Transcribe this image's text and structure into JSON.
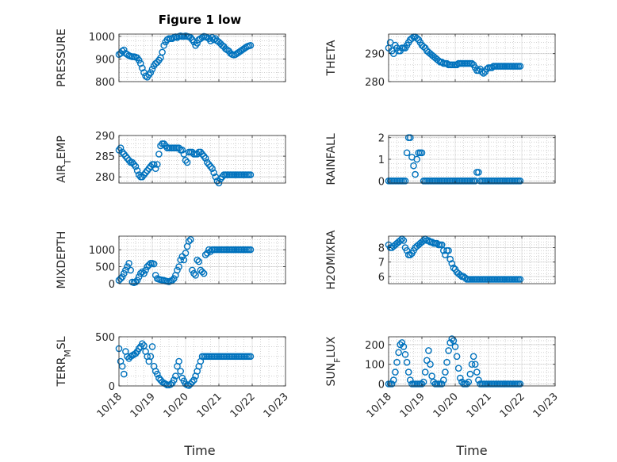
{
  "title": "Figure 1 low",
  "x_label": "Time",
  "x_ticks": [
    "10/18",
    "10/19",
    "10/20",
    "10/21",
    "10/22",
    "10/23"
  ],
  "marker_color": "#0072bd",
  "chart_data": [
    {
      "type": "scatter",
      "ylabel": "PRESSURE",
      "ylim": [
        800,
        1010
      ],
      "yticks": [
        800,
        900,
        1000
      ],
      "grid": true,
      "x": [
        0.0,
        0.05,
        0.1,
        0.15,
        0.2,
        0.25,
        0.3,
        0.35,
        0.4,
        0.45,
        0.5,
        0.55,
        0.6,
        0.65,
        0.7,
        0.75,
        0.8,
        0.85,
        0.9,
        0.95,
        1.0,
        1.05,
        1.1,
        1.15,
        1.2,
        1.25,
        1.3,
        1.35,
        1.4,
        1.45,
        1.5,
        1.55,
        1.6,
        1.65,
        1.7,
        1.75,
        1.8,
        1.85,
        1.9,
        1.95,
        2.0,
        2.05,
        2.1,
        2.15,
        2.2,
        2.25,
        2.3,
        2.35,
        2.4,
        2.45,
        2.5,
        2.55,
        2.6,
        2.65,
        2.7,
        2.75,
        2.8,
        2.85,
        2.9,
        2.95,
        3.0,
        3.05,
        3.1,
        3.15,
        3.2,
        3.25,
        3.3,
        3.35,
        3.4,
        3.45,
        3.5,
        3.55,
        3.6,
        3.65,
        3.7,
        3.75,
        3.8,
        3.85,
        3.9,
        3.95
      ],
      "values": [
        920,
        925,
        935,
        940,
        925,
        920,
        915,
        912,
        910,
        910,
        908,
        905,
        895,
        880,
        860,
        840,
        825,
        820,
        830,
        840,
        855,
        870,
        880,
        885,
        895,
        905,
        930,
        960,
        975,
        985,
        990,
        990,
        990,
        995,
        998,
        995,
        1000,
        1002,
        1000,
        1000,
        1002,
        1000,
        998,
        995,
        985,
        975,
        960,
        970,
        985,
        990,
        995,
        1000,
        998,
        995,
        990,
        980,
        995,
        985,
        990,
        980,
        975,
        968,
        960,
        955,
        945,
        940,
        935,
        925,
        920,
        918,
        920,
        925,
        930,
        935,
        940,
        945,
        950,
        955,
        958,
        960
      ]
    },
    {
      "type": "scatter",
      "ylabel": "THETA",
      "ylim": [
        280,
        297
      ],
      "yticks": [
        280,
        290
      ],
      "grid": true,
      "x": [
        0.0,
        0.05,
        0.1,
        0.15,
        0.2,
        0.25,
        0.3,
        0.35,
        0.4,
        0.45,
        0.5,
        0.55,
        0.6,
        0.65,
        0.7,
        0.75,
        0.8,
        0.85,
        0.9,
        0.95,
        1.0,
        1.05,
        1.1,
        1.15,
        1.2,
        1.25,
        1.3,
        1.35,
        1.4,
        1.45,
        1.5,
        1.55,
        1.6,
        1.65,
        1.7,
        1.75,
        1.8,
        1.85,
        1.9,
        1.95,
        2.0,
        2.05,
        2.1,
        2.15,
        2.2,
        2.25,
        2.3,
        2.35,
        2.4,
        2.45,
        2.5,
        2.55,
        2.6,
        2.65,
        2.7,
        2.75,
        2.8,
        2.85,
        2.9,
        2.95,
        3.0,
        3.05,
        3.1,
        3.15,
        3.2,
        3.25,
        3.3,
        3.35,
        3.4,
        3.45,
        3.5,
        3.55,
        3.6,
        3.65,
        3.7,
        3.75,
        3.8,
        3.85,
        3.9,
        3.95
      ],
      "values": [
        292,
        294,
        291,
        290,
        293,
        292,
        291,
        291,
        292,
        292,
        292,
        293,
        294,
        295,
        295.5,
        296,
        296,
        295.5,
        295,
        294,
        293,
        292.5,
        292,
        291,
        290.5,
        290,
        289.5,
        289,
        288.5,
        288,
        287.5,
        287,
        287,
        286.5,
        286.5,
        286.5,
        286,
        286,
        286,
        286,
        286,
        286,
        286.5,
        286.5,
        286.5,
        286.5,
        286.5,
        286.5,
        286.5,
        286.5,
        286.5,
        286,
        285,
        284,
        284,
        284.5,
        283.5,
        283,
        283.5,
        284.5,
        285,
        285,
        285,
        285.5,
        285.5,
        285.5,
        285.5,
        285.5,
        285.5,
        285.5,
        285.5,
        285.5,
        285.5,
        285.5,
        285.5,
        285.5,
        285.5,
        285.5,
        285.5,
        285.5
      ]
    },
    {
      "type": "scatter",
      "ylabel": "AIR_TEMP",
      "ylim": [
        278.5,
        290
      ],
      "yticks": [
        280,
        285,
        290
      ],
      "grid": true,
      "x": [
        0.0,
        0.05,
        0.1,
        0.15,
        0.2,
        0.25,
        0.3,
        0.35,
        0.4,
        0.45,
        0.5,
        0.55,
        0.6,
        0.65,
        0.7,
        0.75,
        0.8,
        0.85,
        0.9,
        0.95,
        1.0,
        1.05,
        1.1,
        1.15,
        1.2,
        1.25,
        1.3,
        1.35,
        1.4,
        1.45,
        1.5,
        1.55,
        1.6,
        1.65,
        1.7,
        1.75,
        1.8,
        1.85,
        1.9,
        1.95,
        2.0,
        2.05,
        2.1,
        2.15,
        2.2,
        2.25,
        2.3,
        2.35,
        2.4,
        2.45,
        2.5,
        2.55,
        2.6,
        2.65,
        2.7,
        2.75,
        2.8,
        2.85,
        2.9,
        2.95,
        3.0,
        3.05,
        3.1,
        3.15,
        3.2,
        3.25,
        3.3,
        3.35,
        3.4,
        3.45,
        3.5,
        3.55,
        3.6,
        3.65,
        3.7,
        3.75,
        3.8,
        3.85,
        3.9,
        3.95
      ],
      "values": [
        286.5,
        287,
        286,
        285.5,
        285,
        284.5,
        284,
        283.5,
        283.5,
        283,
        282.5,
        281.5,
        280.5,
        280,
        280,
        280.5,
        281,
        281.5,
        282,
        282.5,
        283,
        283,
        282,
        283,
        285.5,
        287.5,
        288,
        288,
        287.5,
        287,
        287,
        287,
        287,
        287,
        287,
        287,
        287,
        286.5,
        286.5,
        285.5,
        284,
        283.5,
        286,
        286,
        286,
        285.5,
        285.5,
        285.5,
        286,
        286,
        285.5,
        285,
        284.5,
        283.5,
        283,
        282.5,
        282,
        281,
        280,
        279,
        278.5,
        279.5,
        280,
        280.5,
        280.5,
        280.5,
        280.5,
        280.5,
        280.5,
        280.5,
        280.5,
        280.5,
        280.5,
        280.5,
        280.5,
        280.5,
        280.5,
        280.5,
        280.5,
        280.5
      ]
    },
    {
      "type": "scatter",
      "ylabel": "RAINFALL",
      "ylim": [
        -0.1,
        2.1
      ],
      "yticks": [
        0,
        1,
        2
      ],
      "grid": true,
      "x": [
        0.0,
        0.05,
        0.1,
        0.15,
        0.2,
        0.25,
        0.3,
        0.35,
        0.4,
        0.45,
        0.5,
        0.55,
        0.6,
        0.65,
        0.7,
        0.75,
        0.8,
        0.85,
        0.9,
        0.95,
        1.0,
        1.05,
        1.1,
        1.15,
        1.2,
        1.25,
        1.3,
        1.35,
        1.4,
        1.45,
        1.5,
        1.55,
        1.6,
        1.65,
        1.7,
        1.75,
        1.8,
        1.85,
        1.9,
        1.95,
        2.0,
        2.05,
        2.1,
        2.15,
        2.2,
        2.25,
        2.3,
        2.35,
        2.4,
        2.45,
        2.5,
        2.55,
        2.6,
        2.65,
        2.7,
        2.75,
        2.8,
        2.85,
        2.9,
        2.95,
        3.0,
        3.05,
        3.1,
        3.15,
        3.2,
        3.25,
        3.3,
        3.35,
        3.4,
        3.45,
        3.5,
        3.55,
        3.6,
        3.65,
        3.7,
        3.75,
        3.8,
        3.85,
        3.9,
        3.95
      ],
      "values": [
        0,
        0,
        0,
        0,
        0,
        0,
        0,
        0,
        0,
        0,
        0,
        1.3,
        2.0,
        2.0,
        1.1,
        0.7,
        0.3,
        1.0,
        1.3,
        1.3,
        1.3,
        0,
        0,
        0,
        0,
        0,
        0,
        0,
        0,
        0,
        0,
        0,
        0,
        0,
        0,
        0,
        0,
        0,
        0,
        0,
        0,
        0,
        0,
        0,
        0,
        0,
        0,
        0,
        0,
        0,
        0,
        0,
        0,
        0.4,
        0.4,
        0,
        0,
        0,
        0,
        0,
        0,
        0,
        0,
        0,
        0,
        0,
        0,
        0,
        0,
        0,
        0,
        0,
        0,
        0,
        0,
        0,
        0,
        0,
        0,
        0
      ]
    },
    {
      "type": "scatter",
      "ylabel": "MIXDEPTH",
      "ylim": [
        0,
        1400
      ],
      "yticks": [
        0,
        500,
        1000
      ],
      "grid": true,
      "x": [
        0.0,
        0.05,
        0.1,
        0.15,
        0.2,
        0.25,
        0.3,
        0.35,
        0.4,
        0.45,
        0.5,
        0.55,
        0.6,
        0.65,
        0.7,
        0.75,
        0.8,
        0.85,
        0.9,
        0.95,
        1.0,
        1.05,
        1.1,
        1.15,
        1.2,
        1.25,
        1.3,
        1.35,
        1.4,
        1.45,
        1.5,
        1.55,
        1.6,
        1.65,
        1.7,
        1.75,
        1.8,
        1.85,
        1.9,
        1.95,
        2.0,
        2.05,
        2.1,
        2.15,
        2.2,
        2.25,
        2.3,
        2.35,
        2.4,
        2.45,
        2.5,
        2.55,
        2.6,
        2.65,
        2.7,
        2.75,
        2.8,
        2.85,
        2.9,
        2.95,
        3.0,
        3.05,
        3.1,
        3.15,
        3.2,
        3.25,
        3.3,
        3.35,
        3.4,
        3.45,
        3.5,
        3.55,
        3.6,
        3.65,
        3.7,
        3.75,
        3.8,
        3.85,
        3.9,
        3.95
      ],
      "values": [
        100,
        150,
        200,
        300,
        400,
        500,
        600,
        400,
        50,
        30,
        50,
        100,
        200,
        300,
        350,
        300,
        400,
        500,
        550,
        600,
        600,
        580,
        250,
        150,
        130,
        120,
        110,
        100,
        80,
        70,
        60,
        80,
        100,
        150,
        250,
        400,
        500,
        700,
        800,
        700,
        900,
        1100,
        1250,
        1300,
        400,
        300,
        250,
        700,
        650,
        400,
        350,
        300,
        850,
        900,
        1000,
        950,
        1000,
        1000,
        1000,
        1000,
        1000,
        1000,
        1000,
        1000,
        1000,
        1000,
        1000,
        1000,
        1000,
        1000,
        1000,
        1000,
        1000,
        1000,
        1000,
        1000,
        1000,
        1000,
        1000,
        1000
      ]
    },
    {
      "type": "scatter",
      "ylabel": "H2OMIXRA",
      "ylim": [
        5.5,
        8.8
      ],
      "yticks": [
        6,
        7,
        8
      ],
      "grid": true,
      "x": [
        0.0,
        0.05,
        0.1,
        0.15,
        0.2,
        0.25,
        0.3,
        0.35,
        0.4,
        0.45,
        0.5,
        0.55,
        0.6,
        0.65,
        0.7,
        0.75,
        0.8,
        0.85,
        0.9,
        0.95,
        1.0,
        1.05,
        1.1,
        1.15,
        1.2,
        1.25,
        1.3,
        1.35,
        1.4,
        1.45,
        1.5,
        1.55,
        1.6,
        1.65,
        1.7,
        1.75,
        1.8,
        1.85,
        1.9,
        1.95,
        2.0,
        2.05,
        2.1,
        2.15,
        2.2,
        2.25,
        2.3,
        2.35,
        2.4,
        2.45,
        2.5,
        2.55,
        2.6,
        2.65,
        2.7,
        2.75,
        2.8,
        2.85,
        2.9,
        2.95,
        3.0,
        3.05,
        3.1,
        3.15,
        3.2,
        3.25,
        3.3,
        3.35,
        3.4,
        3.45,
        3.5,
        3.55,
        3.6,
        3.65,
        3.7,
        3.75,
        3.8,
        3.85,
        3.9,
        3.95
      ],
      "values": [
        8.2,
        8.0,
        8.0,
        8.1,
        8.2,
        8.3,
        8.4,
        8.5,
        8.6,
        8.5,
        8.0,
        7.8,
        7.5,
        7.5,
        7.6,
        7.8,
        8.0,
        8.1,
        8.2,
        8.3,
        8.4,
        8.5,
        8.6,
        8.5,
        8.5,
        8.4,
        8.4,
        8.3,
        8.3,
        8.3,
        8.2,
        8.2,
        8.2,
        7.8,
        7.5,
        7.8,
        7.8,
        7.2,
        6.9,
        6.6,
        6.5,
        6.3,
        6.2,
        6.1,
        6.0,
        6.0,
        5.9,
        5.8,
        5.8,
        5.8,
        5.8,
        5.8,
        5.8,
        5.8,
        5.8,
        5.8,
        5.8,
        5.8,
        5.8,
        5.8,
        5.8,
        5.8,
        5.8,
        5.8,
        5.8,
        5.8,
        5.8,
        5.8,
        5.8,
        5.8,
        5.8,
        5.8,
        5.8,
        5.8,
        5.8,
        5.8,
        5.8,
        5.8,
        5.8,
        5.8
      ]
    },
    {
      "type": "scatter",
      "ylabel": "TERR_MSL",
      "ylim": [
        0,
        500
      ],
      "yticks": [
        0,
        500
      ],
      "grid": true,
      "x": [
        0.0,
        0.05,
        0.1,
        0.15,
        0.2,
        0.25,
        0.3,
        0.35,
        0.4,
        0.45,
        0.5,
        0.55,
        0.6,
        0.65,
        0.7,
        0.75,
        0.8,
        0.85,
        0.9,
        0.95,
        1.0,
        1.05,
        1.1,
        1.15,
        1.2,
        1.25,
        1.3,
        1.35,
        1.4,
        1.45,
        1.5,
        1.55,
        1.6,
        1.65,
        1.7,
        1.75,
        1.8,
        1.85,
        1.9,
        1.95,
        2.0,
        2.05,
        2.1,
        2.15,
        2.2,
        2.25,
        2.3,
        2.35,
        2.4,
        2.45,
        2.5,
        2.55,
        2.6,
        2.65,
        2.7,
        2.75,
        2.8,
        2.85,
        2.9,
        2.95,
        3.0,
        3.05,
        3.1,
        3.15,
        3.2,
        3.25,
        3.3,
        3.35,
        3.4,
        3.45,
        3.5,
        3.55,
        3.6,
        3.65,
        3.7,
        3.75,
        3.8,
        3.85,
        3.9,
        3.95
      ],
      "values": [
        380,
        250,
        200,
        120,
        350,
        300,
        280,
        300,
        310,
        320,
        330,
        350,
        380,
        400,
        430,
        410,
        350,
        300,
        250,
        300,
        400,
        200,
        150,
        120,
        80,
        60,
        40,
        30,
        20,
        10,
        10,
        15,
        30,
        60,
        100,
        200,
        250,
        150,
        80,
        50,
        20,
        10,
        5,
        20,
        40,
        60,
        100,
        150,
        200,
        250,
        300,
        300,
        300,
        300,
        300,
        300,
        300,
        300,
        300,
        300,
        300,
        300,
        300,
        300,
        300,
        300,
        300,
        300,
        300,
        300,
        300,
        300,
        300,
        300,
        300,
        300,
        300,
        300,
        300,
        300
      ]
    },
    {
      "type": "scatter",
      "ylabel": "SUN_FLUX",
      "ylim": [
        -10,
        240
      ],
      "yticks": [
        0,
        100,
        200
      ],
      "grid": true,
      "x": [
        0.0,
        0.05,
        0.1,
        0.15,
        0.2,
        0.25,
        0.3,
        0.35,
        0.4,
        0.45,
        0.5,
        0.55,
        0.6,
        0.65,
        0.7,
        0.75,
        0.8,
        0.85,
        0.9,
        0.95,
        1.0,
        1.05,
        1.1,
        1.15,
        1.2,
        1.25,
        1.3,
        1.35,
        1.4,
        1.45,
        1.5,
        1.55,
        1.6,
        1.65,
        1.7,
        1.75,
        1.8,
        1.85,
        1.9,
        1.95,
        2.0,
        2.05,
        2.1,
        2.15,
        2.2,
        2.25,
        2.3,
        2.35,
        2.4,
        2.45,
        2.5,
        2.55,
        2.6,
        2.65,
        2.7,
        2.75,
        2.8,
        2.85,
        2.9,
        2.95,
        3.0,
        3.05,
        3.1,
        3.15,
        3.2,
        3.25,
        3.3,
        3.35,
        3.4,
        3.45,
        3.5,
        3.55,
        3.6,
        3.65,
        3.7,
        3.75,
        3.8,
        3.85,
        3.9,
        3.95
      ],
      "values": [
        0,
        0,
        0,
        20,
        60,
        110,
        160,
        200,
        210,
        190,
        150,
        110,
        60,
        20,
        0,
        0,
        0,
        0,
        0,
        0,
        0,
        10,
        60,
        120,
        170,
        100,
        40,
        10,
        0,
        0,
        0,
        0,
        0,
        20,
        60,
        110,
        170,
        210,
        230,
        220,
        190,
        140,
        80,
        30,
        10,
        0,
        0,
        0,
        10,
        50,
        100,
        140,
        100,
        60,
        20,
        0,
        0,
        0,
        0,
        0,
        0,
        0,
        0,
        0,
        0,
        0,
        0,
        0,
        0,
        0,
        0,
        0,
        0,
        0,
        0,
        0,
        0,
        0,
        0,
        0
      ]
    }
  ]
}
